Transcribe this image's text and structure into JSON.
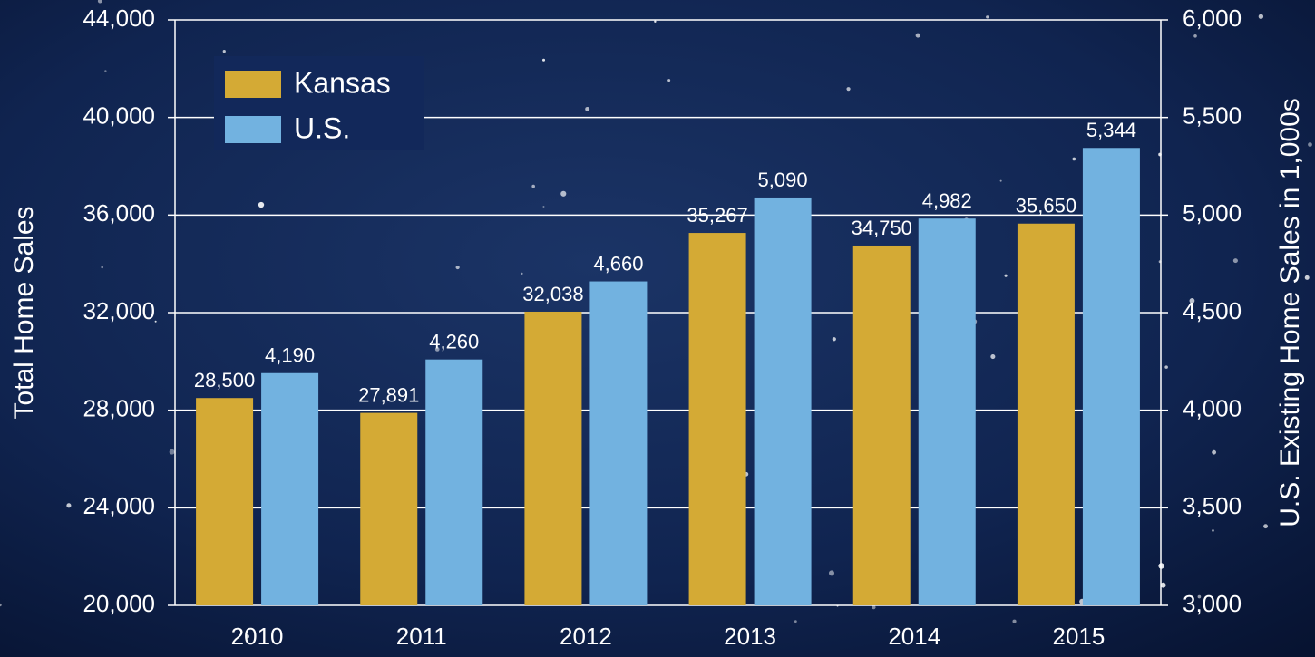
{
  "chart_data": {
    "type": "bar",
    "categories": [
      "2010",
      "2011",
      "2012",
      "2013",
      "2014",
      "2015"
    ],
    "series": [
      {
        "name": "Kansas",
        "color": "#d4aa35",
        "axis": "y",
        "values": [
          28500,
          27891,
          32038,
          35267,
          34750,
          35650
        ],
        "value_labels": [
          "28,500",
          "27,891",
          "32,038",
          "35,267",
          "34,750",
          "35,650"
        ]
      },
      {
        "name": "U.S.",
        "color": "#72b2e0",
        "axis": "y2",
        "values": [
          4190,
          4260,
          4660,
          5090,
          4982,
          5344
        ],
        "value_labels": [
          "4,190",
          "4,260",
          "4,660",
          "5,090",
          "4,982",
          "5,344"
        ]
      }
    ],
    "ylabel": "Total Home Sales",
    "y2label": "U.S. Existing Home Sales in 1,000s",
    "ylim": [
      20000,
      44000
    ],
    "yticks": [
      {
        "value": 20000,
        "label": "20,000"
      },
      {
        "value": 24000,
        "label": "24,000"
      },
      {
        "value": 28000,
        "label": "28,000"
      },
      {
        "value": 32000,
        "label": "32,000"
      },
      {
        "value": 36000,
        "label": "36,000"
      },
      {
        "value": 40000,
        "label": "40,000"
      },
      {
        "value": 44000,
        "label": "44,000"
      }
    ],
    "y2lim": [
      3000,
      6000
    ],
    "y2ticks": [
      {
        "value": 3000,
        "label": "3,000"
      },
      {
        "value": 3500,
        "label": "3,500"
      },
      {
        "value": 4000,
        "label": "4,000"
      },
      {
        "value": 4500,
        "label": "4,500"
      },
      {
        "value": 5000,
        "label": "5,000"
      },
      {
        "value": 5500,
        "label": "5,500"
      },
      {
        "value": 6000,
        "label": "6,000"
      }
    ],
    "grid": true,
    "legend": "upper left"
  }
}
